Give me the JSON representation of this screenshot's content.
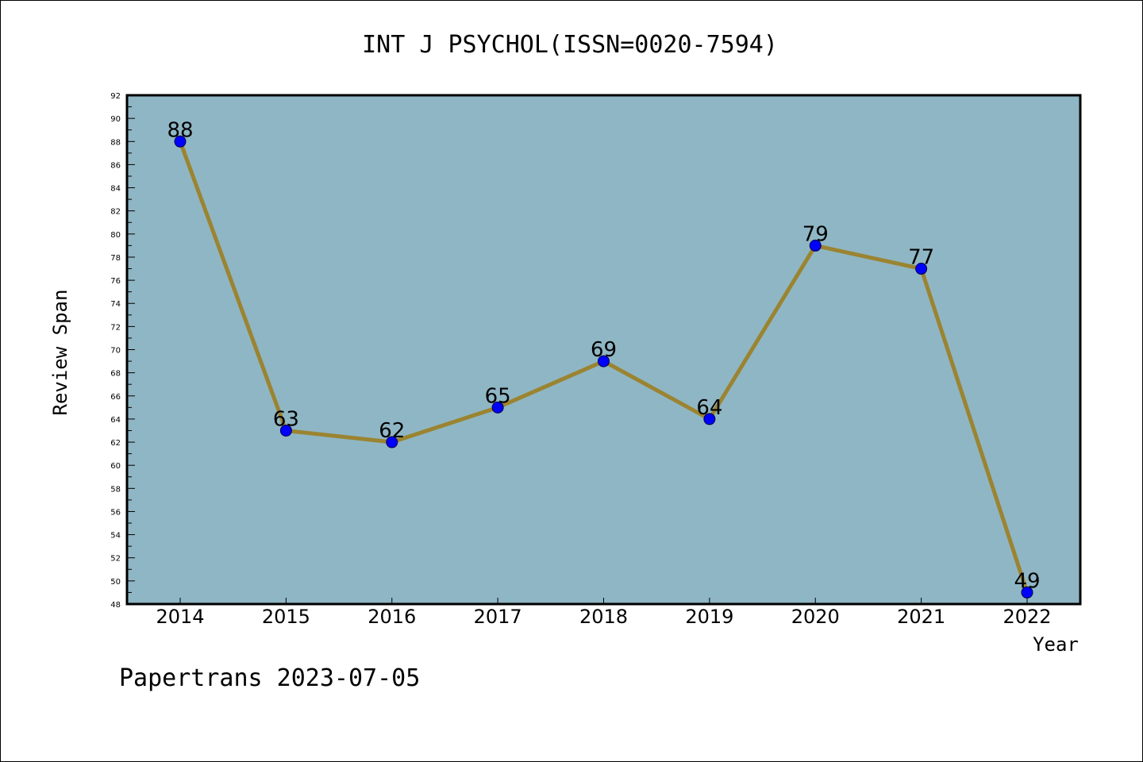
{
  "footer": "Papertrans 2023-07-05",
  "colors": {
    "plot_background": "#8fb6c4",
    "line": "#9b8431",
    "marker": "#0000ff"
  },
  "chart_data": {
    "type": "line",
    "title": "INT J PSYCHOL(ISSN=0020-7594)",
    "xlabel": "Year",
    "ylabel": "Review Span",
    "categories": [
      "2014",
      "2015",
      "2016",
      "2017",
      "2018",
      "2019",
      "2020",
      "2021",
      "2022"
    ],
    "values": [
      88,
      63,
      62,
      65,
      69,
      64,
      79,
      77,
      49
    ],
    "ylim": [
      48,
      92
    ],
    "yticks": [
      48,
      50,
      52,
      54,
      56,
      58,
      60,
      62,
      64,
      66,
      68,
      70,
      72,
      74,
      76,
      78,
      80,
      82,
      84,
      86,
      88,
      90,
      92
    ],
    "data_labels": true,
    "grid": false
  }
}
